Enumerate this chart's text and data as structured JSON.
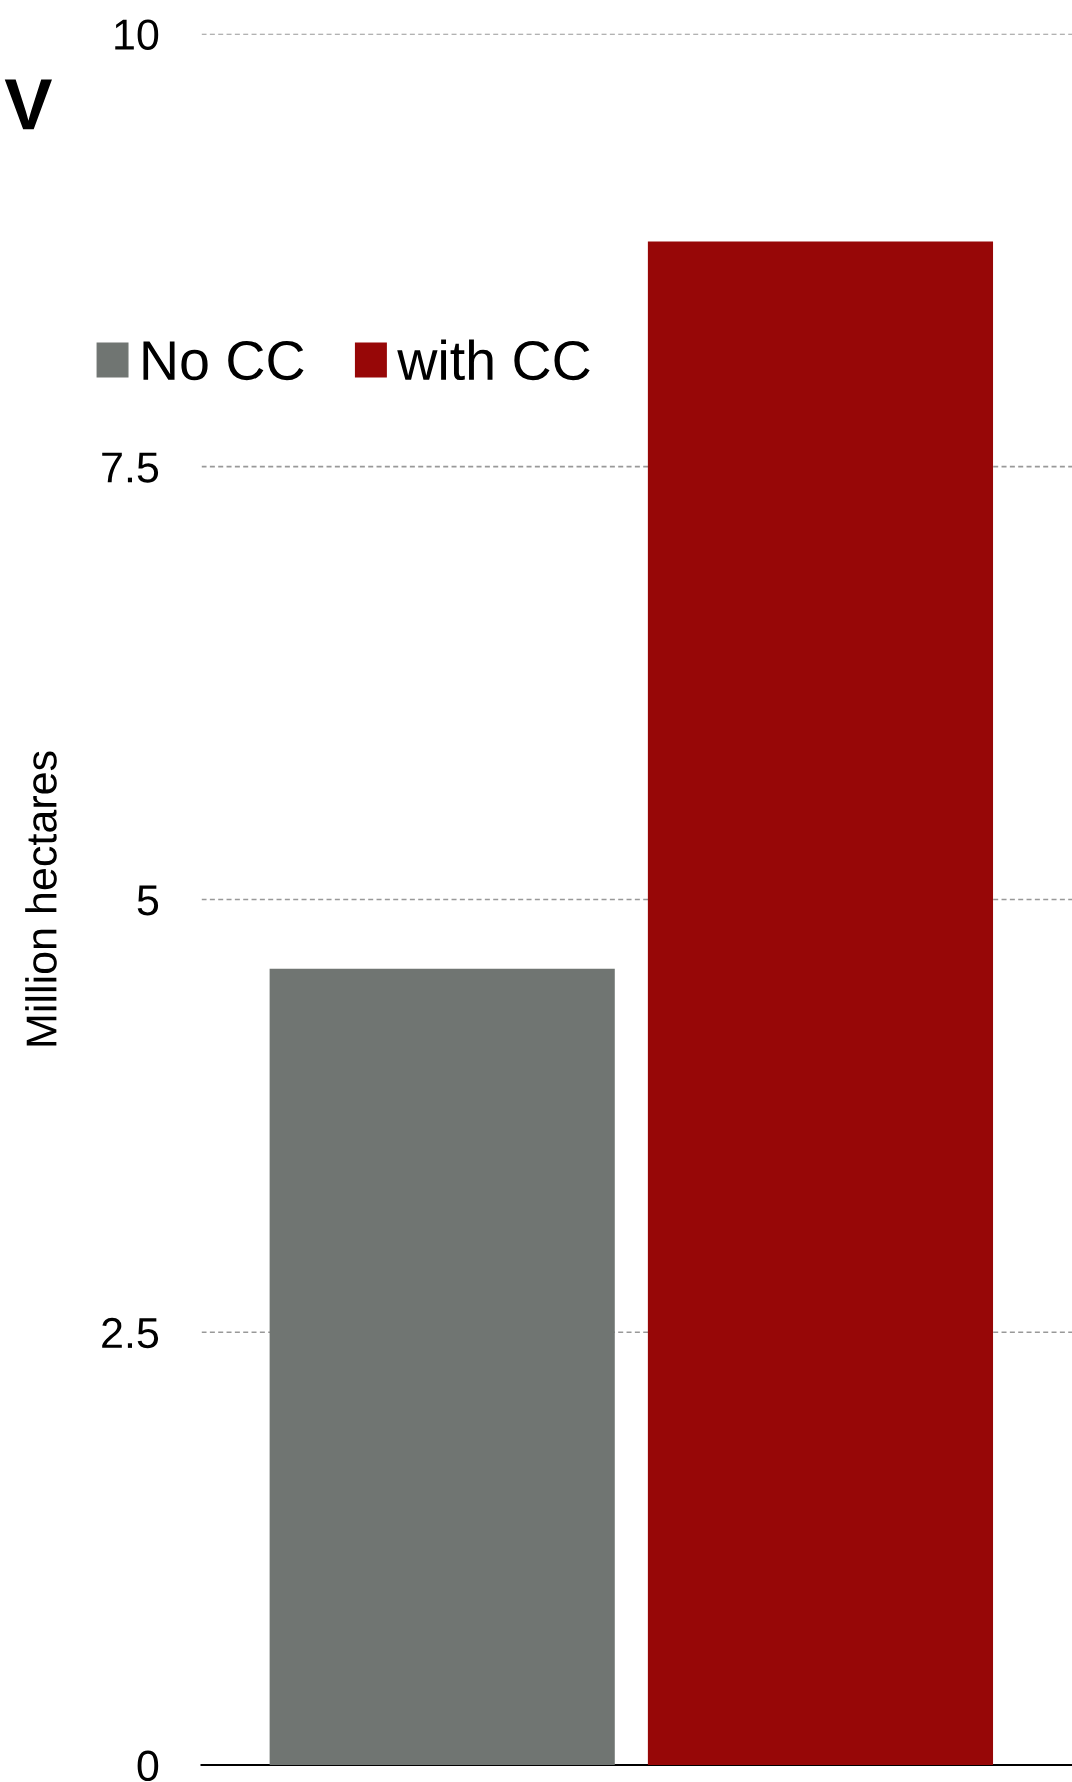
{
  "chart_data": {
    "type": "bar",
    "title": "V",
    "ylabel": "Million hectares",
    "categories": [
      null
    ],
    "series": [
      {
        "name": "No CC",
        "color": "#707572",
        "values": [
          4.6
        ]
      },
      {
        "name": "with CC",
        "color": "#970707",
        "values": [
          8.8
        ]
      }
    ],
    "ylim": [
      0,
      10
    ],
    "yticks": [
      0,
      2.5,
      5,
      7.5,
      10
    ],
    "grid": "y",
    "legend": "top left"
  }
}
